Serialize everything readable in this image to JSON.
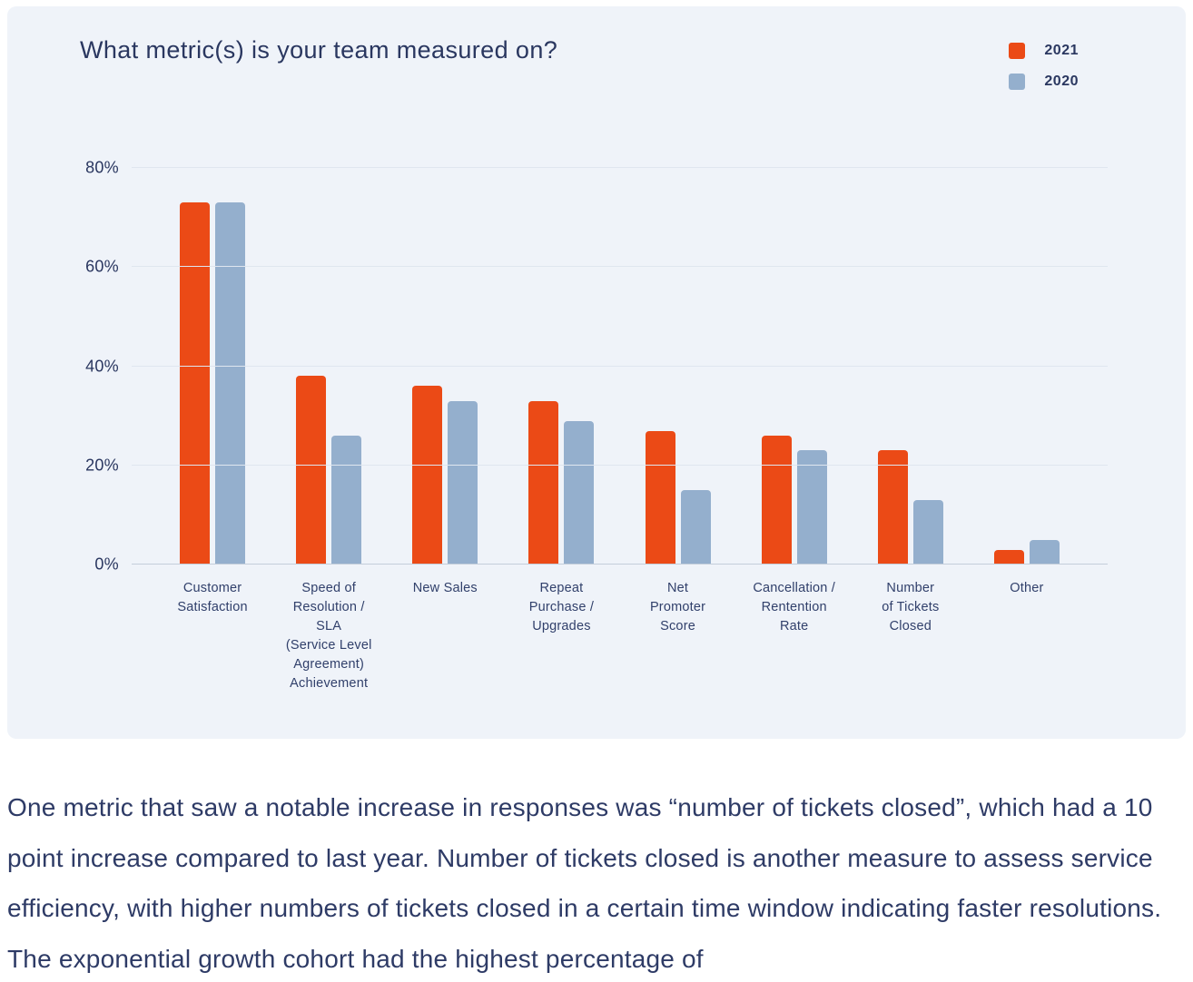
{
  "chart_data": {
    "type": "bar",
    "title": "What metric(s) is your team measured on?",
    "categories": [
      "Customer\nSatisfaction",
      "Speed of\nResolution /\nSLA\n(Service Level\nAgreement)\nAchievement",
      "New Sales",
      "Repeat\nPurchase /\nUpgrades",
      "Net\nPromoter\nScore",
      "Cancellation /\nRentention\nRate",
      "Number\nof Tickets\nClosed",
      "Other"
    ],
    "series": [
      {
        "name": "2021",
        "color": "#eb4a16",
        "values": [
          73,
          38,
          36,
          33,
          27,
          26,
          23,
          3
        ]
      },
      {
        "name": "2020",
        "color": "#94afcd",
        "values": [
          73,
          26,
          33,
          29,
          15,
          23,
          13,
          5
        ]
      }
    ],
    "xlabel": "",
    "ylabel": "",
    "ylim": [
      0,
      80
    ],
    "yticks": [
      0,
      20,
      40,
      60,
      80
    ],
    "ytick_suffix": "%",
    "grid": true,
    "legend_position": "top-right"
  },
  "colors": {
    "card_background": "#eff3f9",
    "page_background": "#ffffff",
    "heading_text": "#2a3760",
    "gridline": "#dfe6ef",
    "axis_line": "#c4ceda"
  },
  "commentary": {
    "text": "One metric that saw a notable increase in responses was “number of tickets closed”, which had a 10 point increase compared to last year. Number of tickets closed is another measure to assess service efficiency, with higher numbers of tickets closed in a certain time window indicating faster resolutions. The exponential growth cohort had the highest percentage of"
  }
}
